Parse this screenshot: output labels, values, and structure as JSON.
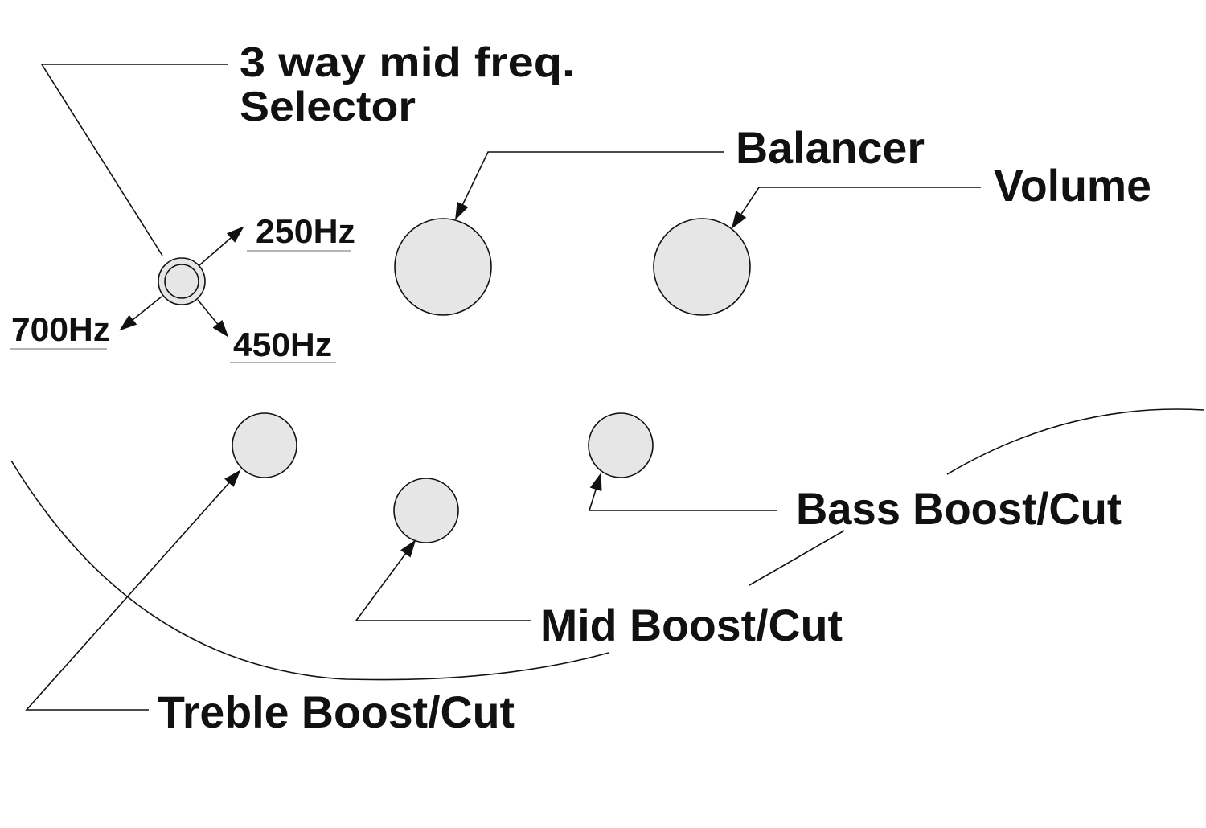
{
  "labels": {
    "selector_line1": "3 way mid freq.",
    "selector_line2": "Selector",
    "freq_250": "250Hz",
    "freq_700": "700Hz",
    "freq_450": "450Hz",
    "balancer": "Balancer",
    "volume": "Volume",
    "bass": "Bass Boost/Cut",
    "mid": "Mid Boost/Cut",
    "treble": "Treble Boost/Cut"
  },
  "colors": {
    "knob_fill": "#e6e6e6",
    "ink": "#111111"
  }
}
